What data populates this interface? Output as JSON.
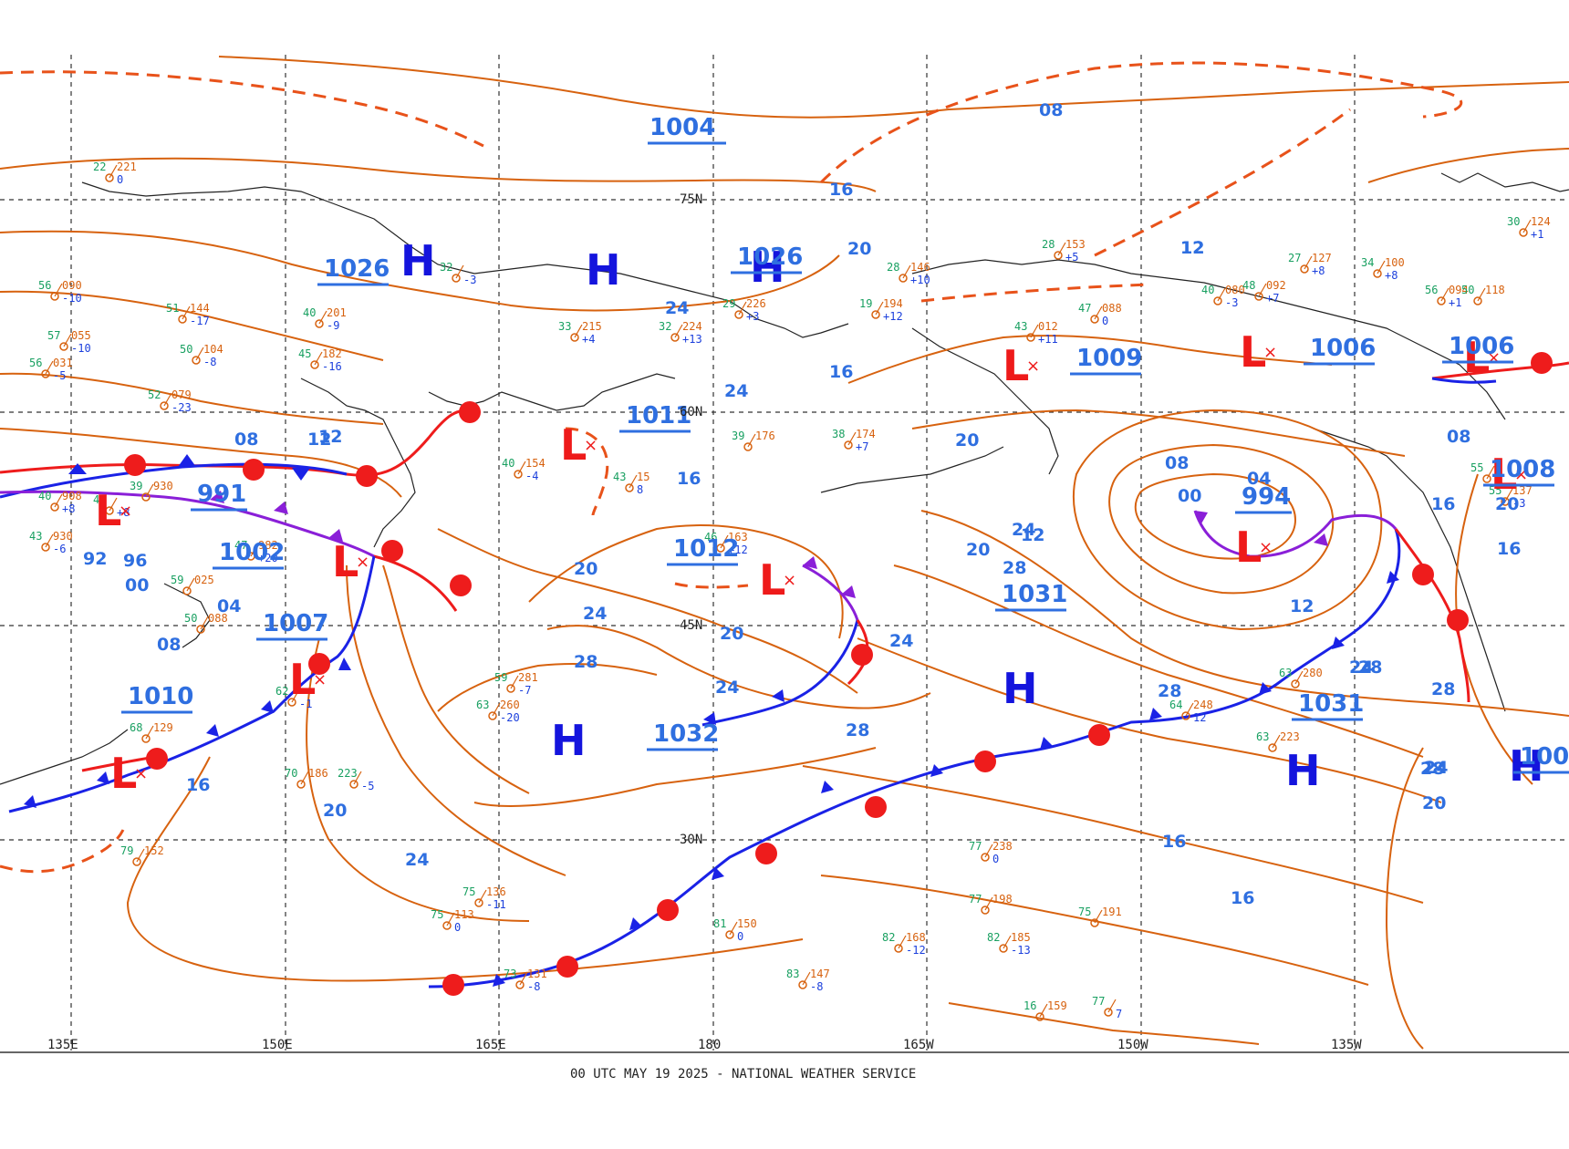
{
  "footer": "00 UTC MAY 19 2025 - NATIONAL WEATHER SERVICE",
  "colors": {
    "isobar": "#d7620f",
    "cold_front": "#1a22e6",
    "warm_front": "#ee1c1c",
    "occluded_front": "#8a1fd8",
    "high": "#1414dd",
    "low": "#ee1a1a",
    "labels": "#2f6fe0"
  },
  "longitudes": [
    "135E",
    "150E",
    "165E",
    "180",
    "165W",
    "150W",
    "135W"
  ],
  "latitudes": [
    "75N",
    "60N",
    "45N",
    "30N"
  ],
  "pressure_centers": [
    {
      "type": "H",
      "value": "1026"
    },
    {
      "type": "H",
      "value": ""
    },
    {
      "type": "H",
      "value": "1026"
    },
    {
      "type": "L",
      "value": "991"
    },
    {
      "type": "L",
      "value": "1002"
    },
    {
      "type": "L",
      "value": "1007"
    },
    {
      "type": "L",
      "value": "1010"
    },
    {
      "type": "L",
      "value": "1011"
    },
    {
      "type": "L",
      "value": "1012"
    },
    {
      "type": "H",
      "value": "1032"
    },
    {
      "type": "H",
      "value": "1031"
    },
    {
      "type": "L",
      "value": "1009"
    },
    {
      "type": "L",
      "value": "994"
    },
    {
      "type": "L",
      "value": "1006"
    },
    {
      "type": "H",
      "value": "1031"
    },
    {
      "type": "L",
      "value": "1006"
    },
    {
      "type": "L",
      "value": "1008"
    },
    {
      "type": "H",
      "value": "100"
    }
  ],
  "center_values_extra": [
    "1004"
  ],
  "isobar_labels": [
    "08",
    "16",
    "20",
    "24",
    "12",
    "08",
    "12",
    "16",
    "20",
    "24",
    "28",
    "20",
    "24",
    "28",
    "12",
    "16",
    "20",
    "24",
    "28",
    "08",
    "04",
    "00",
    "12",
    "16",
    "20",
    "24",
    "28",
    "12",
    "16",
    "20",
    "24",
    "28",
    "16",
    "20",
    "24",
    "28",
    "08",
    "16",
    "24",
    "28",
    "92",
    "96",
    "00",
    "04",
    "08",
    "12",
    "16",
    "20",
    "24"
  ],
  "stations": [
    {
      "t": "22",
      "p": "221",
      "d": "0"
    },
    {
      "t": "56",
      "p": "090",
      "d": "-10"
    },
    {
      "t": "57",
      "p": "055",
      "d": "-10"
    },
    {
      "t": "56",
      "p": "031",
      "d": "-5"
    },
    {
      "t": "52",
      "p": "079",
      "d": "-23"
    },
    {
      "t": "51",
      "p": "144",
      "d": "-17"
    },
    {
      "t": "50",
      "p": "104",
      "d": "-8"
    },
    {
      "t": "45",
      "p": "182",
      "d": "-16"
    },
    {
      "t": "40",
      "p": "201",
      "d": "-9"
    },
    {
      "t": "32",
      "p": "",
      "d": "-3"
    },
    {
      "t": "33",
      "p": "215",
      "d": "+4"
    },
    {
      "t": "32",
      "p": "224",
      "d": "+13"
    },
    {
      "t": "29",
      "p": "226",
      "d": "+3"
    },
    {
      "t": "40",
      "p": "154",
      "d": "-4"
    },
    {
      "t": "43",
      "p": "15",
      "d": "8"
    },
    {
      "t": "46",
      "p": "163",
      "d": "+12"
    },
    {
      "t": "38",
      "p": "174",
      "d": "+7"
    },
    {
      "t": "19",
      "p": "194",
      "d": "+12"
    },
    {
      "t": "28",
      "p": "146",
      "d": "+10"
    },
    {
      "t": "28",
      "p": "153",
      "d": "+5"
    },
    {
      "t": "43",
      "p": "012",
      "d": "+11"
    },
    {
      "t": "47",
      "p": "088",
      "d": "0"
    },
    {
      "t": "40",
      "p": "080",
      "d": "-3"
    },
    {
      "t": "48",
      "p": "092",
      "d": "+7"
    },
    {
      "t": "27",
      "p": "127",
      "d": "+8"
    },
    {
      "t": "34",
      "p": "100",
      "d": "+8"
    },
    {
      "t": "56",
      "p": "094",
      "d": "+1"
    },
    {
      "t": "50",
      "p": "118",
      "d": ""
    },
    {
      "t": "30",
      "p": "124",
      "d": "+1"
    },
    {
      "t": "55",
      "p": "137",
      "d": "-3"
    },
    {
      "t": "63",
      "p": "280",
      "d": ""
    },
    {
      "t": "64",
      "p": "248",
      "d": "12"
    },
    {
      "t": "63",
      "p": "223",
      "d": ""
    },
    {
      "t": "59",
      "p": "281",
      "d": "-7"
    },
    {
      "t": "63",
      "p": "260",
      "d": "-20"
    },
    {
      "t": "77",
      "p": "238",
      "d": "0"
    },
    {
      "t": "77",
      "p": "198",
      "d": ""
    },
    {
      "t": "75",
      "p": "191",
      "d": ""
    },
    {
      "t": "82",
      "p": "168",
      "d": "-12"
    },
    {
      "t": "82",
      "p": "185",
      "d": "-13"
    },
    {
      "t": "81",
      "p": "150",
      "d": "0"
    },
    {
      "t": "83",
      "p": "147",
      "d": "-8"
    },
    {
      "t": "73",
      "p": "131",
      "d": "-8"
    },
    {
      "t": "75",
      "p": "113",
      "d": "0"
    },
    {
      "t": "75",
      "p": "136",
      "d": "-11"
    },
    {
      "t": "70",
      "p": "186",
      "d": ""
    },
    {
      "t": "223",
      "p": "",
      "d": "-5"
    },
    {
      "t": "79",
      "p": "152",
      "d": ""
    },
    {
      "t": "68",
      "p": "129",
      "d": ""
    },
    {
      "t": "62",
      "p": "",
      "d": "-1"
    },
    {
      "t": "47",
      "p": "982",
      "d": "+20"
    },
    {
      "t": "43",
      "p": "930",
      "d": "-6"
    },
    {
      "t": "40",
      "p": "908",
      "d": "+8"
    },
    {
      "t": "47",
      "p": "",
      "d": "+8"
    },
    {
      "t": "39",
      "p": "930",
      "d": ""
    },
    {
      "t": "59",
      "p": "025",
      "d": ""
    },
    {
      "t": "50",
      "p": "088",
      "d": ""
    },
    {
      "t": "16",
      "p": "159",
      "d": ""
    },
    {
      "t": "77",
      "p": "",
      "d": "7"
    },
    {
      "t": "39",
      "p": "176",
      "d": ""
    },
    {
      "t": "55",
      "p": "",
      "d": ""
    }
  ]
}
